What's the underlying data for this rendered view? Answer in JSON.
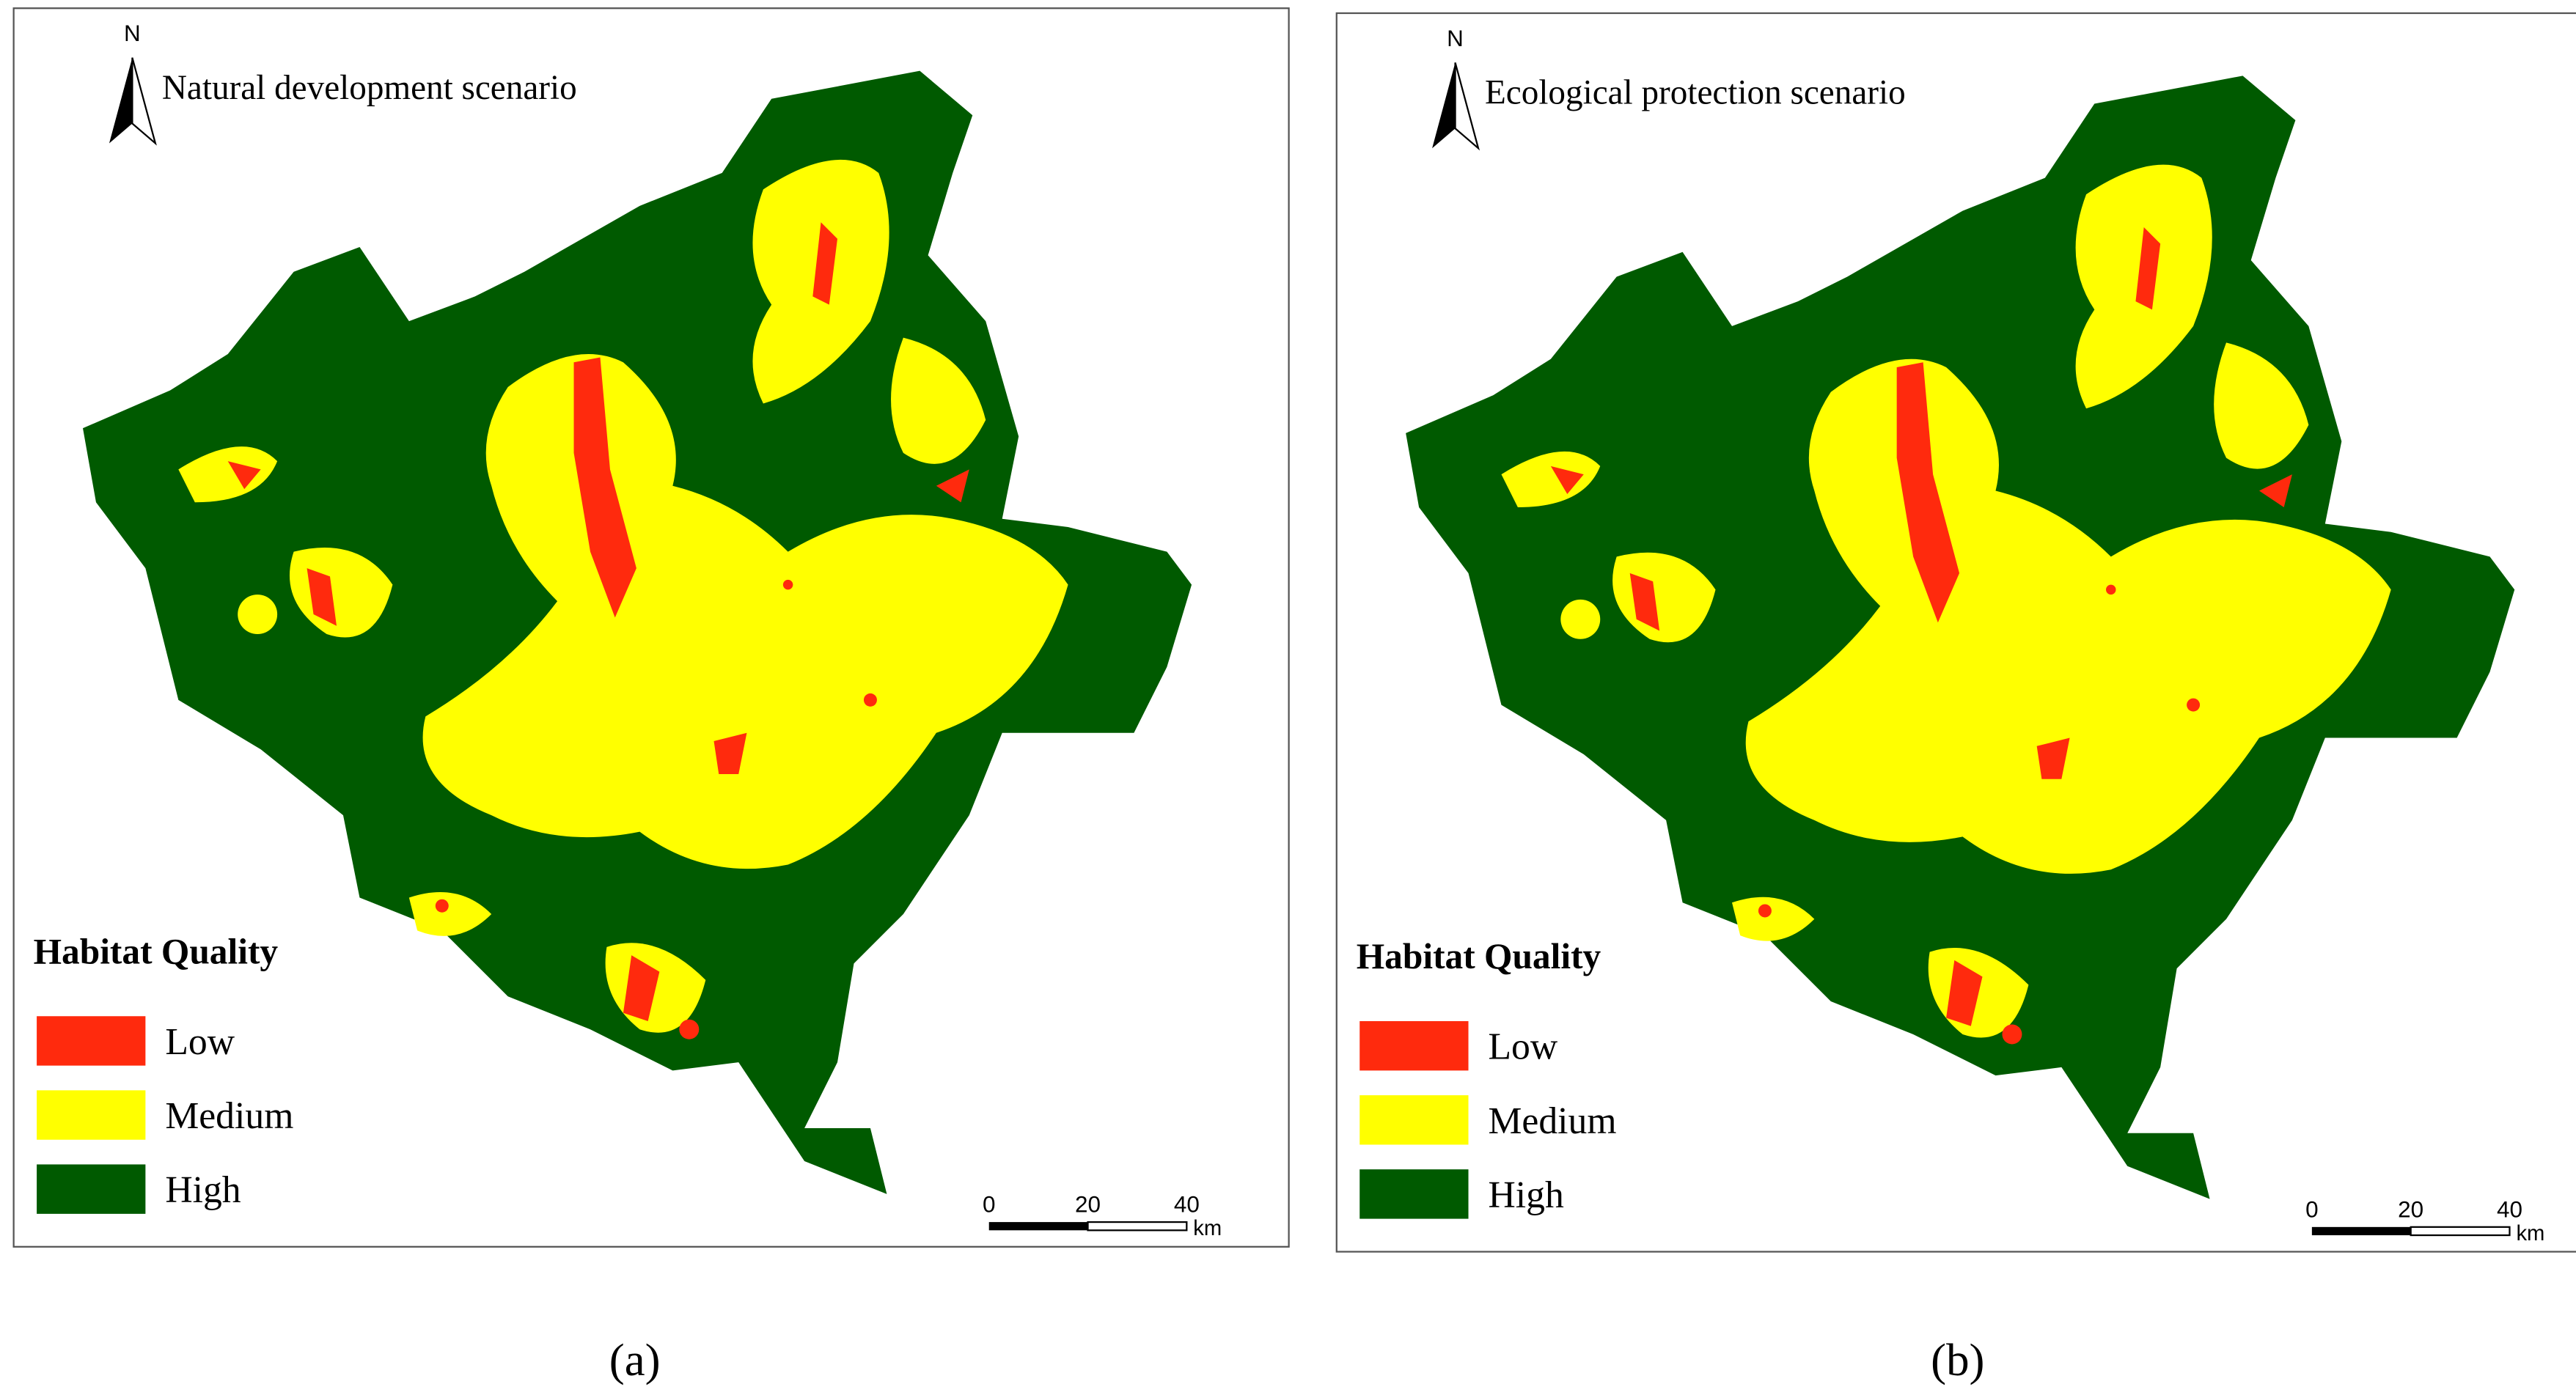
{
  "panels": [
    {
      "north": "N",
      "title": "Natural development scenario",
      "legend": {
        "title": "Habitat Quality",
        "items": [
          {
            "label": "Low",
            "color": "#ff2a0d"
          },
          {
            "label": "Medium",
            "color": "#ffff00"
          },
          {
            "label": "High",
            "color": "#005a00"
          }
        ]
      },
      "scale_bar": {
        "ticks": [
          0,
          20,
          40
        ],
        "unit": "km"
      },
      "caption": "(a)"
    },
    {
      "north": "N",
      "title": "Ecological protection scenario",
      "legend": {
        "title": "Habitat Quality",
        "items": [
          {
            "label": "Low",
            "color": "#ff2a0d"
          },
          {
            "label": "Medium",
            "color": "#ffff00"
          },
          {
            "label": "High",
            "color": "#005a00"
          }
        ]
      },
      "scale_bar": {
        "ticks": [
          0,
          20,
          40
        ],
        "unit": "km"
      },
      "caption": "(b)"
    }
  ]
}
